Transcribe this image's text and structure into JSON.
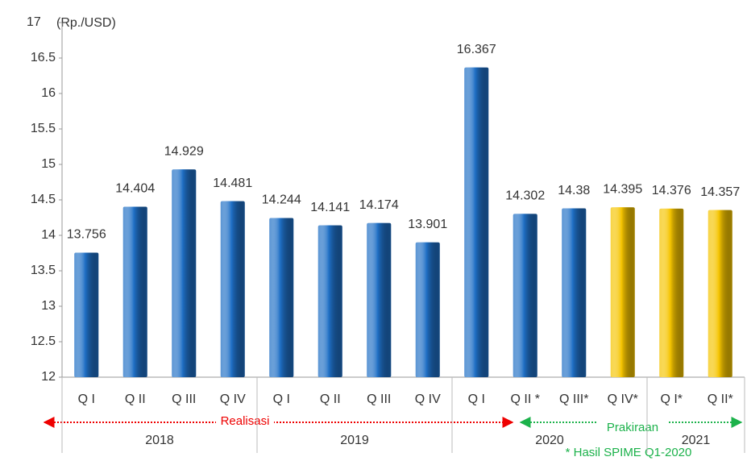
{
  "chart_data": {
    "type": "bar",
    "y_label": "(Rp./USD)",
    "categories": [
      "Q I",
      "Q II",
      "Q III",
      "Q IV",
      "Q I",
      "Q II",
      "Q III",
      "Q IV",
      "Q I",
      "Q II *",
      "Q III*",
      "Q IV*",
      "Q I*",
      "Q II*"
    ],
    "values": [
      13.756,
      14.404,
      14.929,
      14.481,
      14.244,
      14.141,
      14.174,
      13.901,
      16.367,
      14.302,
      14.38,
      14.395,
      14.376,
      14.357
    ],
    "colors": [
      "#1f6fc5",
      "#1f6fc5",
      "#1f6fc5",
      "#1f6fc5",
      "#1f6fc5",
      "#1f6fc5",
      "#1f6fc5",
      "#1f6fc5",
      "#1f6fc5",
      "#1f6fc5",
      "#1f6fc5",
      "#f5c400",
      "#f5c400",
      "#f5c400"
    ],
    "groups": [
      {
        "label": "2018",
        "count": 4
      },
      {
        "label": "2019",
        "count": 4
      },
      {
        "label": "2020",
        "count": 4
      },
      {
        "label": "2021",
        "count": 2
      }
    ],
    "ylim": [
      12,
      17
    ],
    "yticks": [
      12,
      12.5,
      13,
      13.5,
      14,
      14.5,
      15,
      15.5,
      16,
      16.5,
      17
    ],
    "annotations": {
      "realisasi": "Realisasi",
      "prakiraan": "Prakiraan",
      "note": "* Hasil SPIME Q1-2020"
    }
  }
}
